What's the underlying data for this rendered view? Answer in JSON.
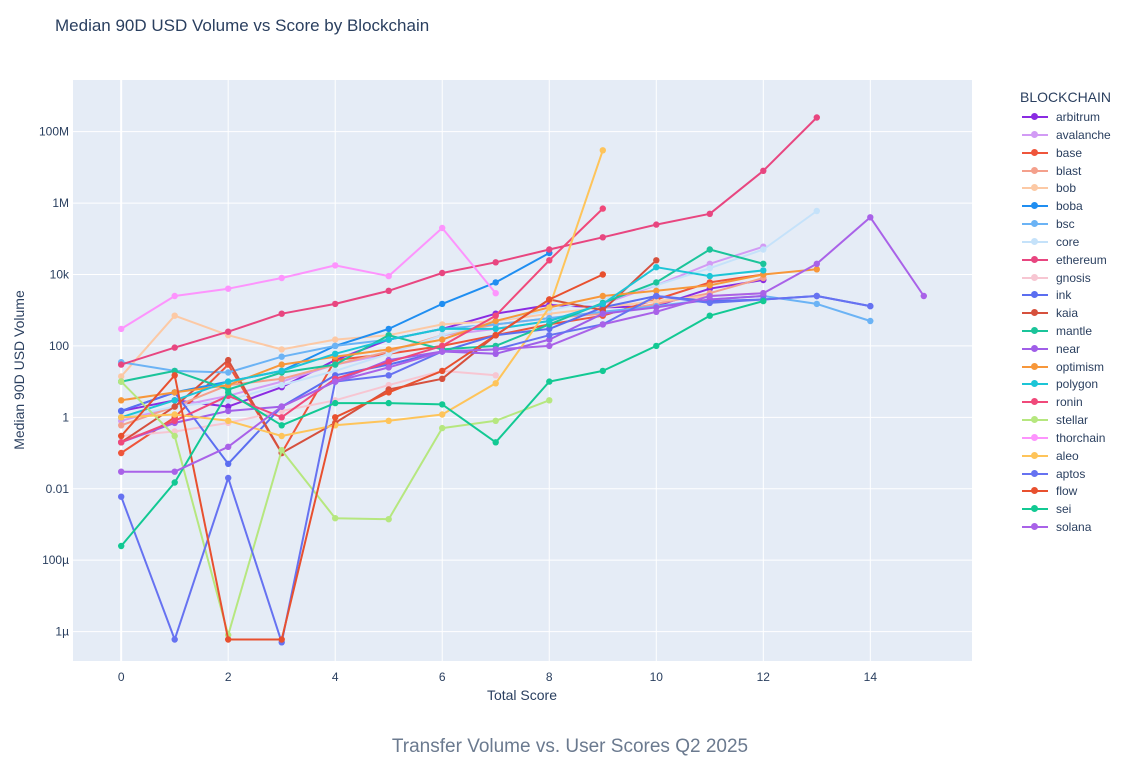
{
  "chart_data": {
    "type": "line",
    "title": "Median 90D USD Volume vs Score by Blockchain",
    "xlabel": "Total Score",
    "ylabel": "Median 90D USD Volume",
    "x_scale": "linear",
    "y_scale": "log",
    "xlim": [
      -0.9,
      15.9
    ],
    "ylim": [
      1.5e-07,
      2800000000
    ],
    "x_ticks": [
      0,
      2,
      4,
      6,
      8,
      10,
      12,
      14
    ],
    "y_ticks": [
      {
        "value": 1e-06,
        "label": "1µ"
      },
      {
        "value": 0.0001,
        "label": "100µ"
      },
      {
        "value": 0.01,
        "label": "0.01"
      },
      {
        "value": 1,
        "label": "1"
      },
      {
        "value": 100,
        "label": "100"
      },
      {
        "value": 10000,
        "label": "10k"
      },
      {
        "value": 1000000,
        "label": "1M"
      },
      {
        "value": 100000000,
        "label": "100M"
      }
    ],
    "legend_title": "BLOCKCHAIN",
    "legend_position": "right",
    "grid": true,
    "colors": {
      "plot_bg": "#e5ecf6",
      "grid": "#ffffff",
      "text": "#2a3f5f"
    },
    "series": [
      {
        "name": "arbitrum",
        "color": "#8a2be2",
        "x": [
          0,
          1,
          2,
          3,
          4,
          5,
          6,
          7,
          8,
          9,
          10,
          11,
          12
        ],
        "y": [
          1.5,
          3,
          2,
          7,
          40,
          150,
          300,
          800,
          1400,
          1200,
          1300,
          4000,
          7000
        ]
      },
      {
        "name": "avalanche",
        "color": "#d29bf5",
        "x": [
          0,
          1,
          2,
          3,
          4,
          5,
          6,
          7,
          8,
          9,
          10,
          11,
          12
        ],
        "y": [
          0.8,
          2,
          4,
          10,
          30,
          60,
          200,
          300,
          500,
          1500,
          5000,
          20000,
          60000
        ]
      },
      {
        "name": "base",
        "color": "#ef553b",
        "x": [
          0,
          1,
          2,
          3,
          4,
          5,
          6,
          7,
          8,
          9,
          10,
          11,
          12
        ],
        "y": [
          0.1,
          1,
          30,
          0.1,
          40,
          60,
          100,
          200,
          400,
          700,
          2000,
          6000,
          10000
        ]
      },
      {
        "name": "blast",
        "color": "#f4a08c",
        "x": [
          0,
          1,
          2,
          3,
          4,
          5,
          6,
          7,
          8,
          9,
          10,
          11,
          12
        ],
        "y": [
          0.6,
          2,
          8,
          12,
          30,
          70,
          200,
          400,
          600,
          800,
          1500,
          3000,
          8000
        ]
      },
      {
        "name": "bob",
        "color": "#fcc9a5",
        "x": [
          0,
          1,
          2,
          3,
          4,
          5,
          6,
          7,
          8,
          9,
          10,
          11,
          12
        ],
        "y": [
          14,
          700,
          200,
          80,
          150,
          200,
          400,
          500,
          800,
          1200,
          1800,
          2500,
          3000
        ]
      },
      {
        "name": "boba",
        "color": "#1f8ef1",
        "x": [
          0,
          1,
          2,
          3,
          4,
          5,
          6,
          7,
          8
        ],
        "y": [
          1.5,
          5,
          10,
          20,
          100,
          300,
          1500,
          6000,
          40000
        ]
      },
      {
        "name": "bsc",
        "color": "#6bb3f5",
        "x": [
          0,
          1,
          2,
          3,
          4,
          5,
          6,
          7,
          8,
          9,
          10,
          11,
          12,
          13,
          14
        ],
        "y": [
          35,
          20,
          18,
          50,
          100,
          150,
          300,
          400,
          600,
          900,
          1300,
          2000,
          2500,
          1500,
          500
        ]
      },
      {
        "name": "core",
        "color": "#c5e2fa",
        "x": [
          0,
          1,
          2,
          3,
          4,
          5,
          6,
          7,
          8,
          9,
          10,
          11,
          12,
          13
        ],
        "y": [
          1,
          2,
          3,
          8,
          20,
          60,
          200,
          500,
          1000,
          2000,
          5000,
          15000,
          50000,
          600000
        ]
      },
      {
        "name": "ethereum",
        "color": "#e84680",
        "x": [
          0,
          1,
          2,
          3,
          4,
          5,
          6,
          7,
          8,
          9,
          10,
          11,
          12,
          13
        ],
        "y": [
          30,
          90,
          250,
          800,
          1500,
          3500,
          11000,
          22000,
          50000,
          110000,
          250000,
          500000,
          8000000,
          250000000
        ]
      },
      {
        "name": "gnosis",
        "color": "#f7c6d2",
        "x": [
          0,
          1,
          2,
          3,
          4,
          5,
          6,
          7
        ],
        "y": [
          0.3,
          0.4,
          0.7,
          1.5,
          3,
          8,
          20,
          15
        ]
      },
      {
        "name": "ink",
        "color": "#5b6ef0",
        "x": [
          0,
          1,
          2,
          3,
          4,
          5,
          6,
          7,
          8,
          9,
          10,
          11,
          12,
          13,
          14
        ],
        "y": [
          1.5,
          5,
          0.05,
          2,
          15,
          30,
          70,
          200,
          300,
          1200,
          2500,
          1800,
          2000,
          2500,
          1300
        ]
      },
      {
        "name": "kaia",
        "color": "#d6503d",
        "x": [
          0,
          1,
          2,
          3,
          4,
          5,
          6,
          7,
          8,
          9,
          10
        ],
        "y": [
          0.2,
          2,
          40,
          0.1,
          0.7,
          6,
          12,
          200,
          2000,
          1000,
          25000
        ]
      },
      {
        "name": "mantle",
        "color": "#1bc49a",
        "x": [
          0,
          1,
          2,
          3,
          4,
          5,
          6,
          7,
          8,
          9,
          10,
          11,
          12
        ],
        "y": [
          10,
          20,
          6,
          18,
          30,
          200,
          80,
          100,
          400,
          1600,
          6000,
          50000,
          20000
        ]
      },
      {
        "name": "near",
        "color": "#a05ee8",
        "x": [
          0,
          1,
          2,
          3,
          4,
          5,
          6,
          7,
          8,
          9,
          10,
          11,
          12
        ],
        "y": [
          0.2,
          0.7,
          1.5,
          2,
          10,
          40,
          70,
          60,
          150,
          800,
          1200,
          2000,
          2500
        ]
      },
      {
        "name": "optimism",
        "color": "#f7973a",
        "x": [
          0,
          1,
          2,
          3,
          4,
          5,
          6,
          7,
          8,
          9,
          10,
          11,
          12,
          13
        ],
        "y": [
          3,
          5,
          8,
          30,
          50,
          80,
          150,
          500,
          1200,
          2500,
          3500,
          5000,
          10000,
          14000
        ]
      },
      {
        "name": "polygon",
        "color": "#1cc5d6",
        "x": [
          0,
          1,
          2,
          3,
          4,
          5,
          6,
          7,
          8,
          9,
          10,
          11,
          12
        ],
        "y": [
          1,
          3,
          10,
          20,
          60,
          150,
          300,
          300,
          500,
          1500,
          16000,
          9000,
          13000
        ]
      },
      {
        "name": "ronin",
        "color": "#f0497a",
        "x": [
          0,
          1,
          2,
          3,
          4,
          5,
          6,
          7,
          8,
          9
        ],
        "y": [
          0.2,
          0.8,
          4,
          1,
          12,
          35,
          100,
          700,
          25000,
          700000
        ]
      },
      {
        "name": "stellar",
        "color": "#b6e77f",
        "x": [
          0,
          1,
          2,
          3,
          4,
          5,
          6,
          7,
          8
        ],
        "y": [
          10,
          0.3,
          8e-07,
          0.12,
          0.0015,
          0.0014,
          0.5,
          0.8,
          3
        ]
      },
      {
        "name": "thorchain",
        "color": "#fd94fd",
        "x": [
          0,
          1,
          2,
          3,
          4,
          5,
          6,
          7
        ],
        "y": [
          300,
          2500,
          4000,
          8000,
          18000,
          9000,
          200000,
          3000
        ]
      },
      {
        "name": "aleo",
        "color": "#fec45a",
        "x": [
          0,
          1,
          2,
          3,
          4,
          5,
          6,
          7,
          8,
          9
        ],
        "y": [
          1,
          1.2,
          0.8,
          0.3,
          0.6,
          0.8,
          1.2,
          9,
          1200,
          30000000
        ]
      },
      {
        "name": "aptos",
        "color": "#6672f1",
        "x": [
          0,
          1,
          2,
          3,
          4,
          5,
          6,
          7,
          8,
          9,
          10,
          11,
          12,
          13,
          14
        ],
        "y": [
          0.006,
          6e-07,
          0.02,
          5e-07,
          10,
          15,
          70,
          80,
          200,
          400,
          2500,
          1600,
          2000,
          2500,
          1300
        ]
      },
      {
        "name": "flow",
        "color": "#e8502f",
        "x": [
          0,
          1,
          2,
          3,
          4,
          5,
          6,
          7,
          8,
          9
        ],
        "y": [
          0.3,
          15,
          6e-07,
          6e-07,
          1,
          5,
          20,
          200,
          2000,
          10000
        ]
      },
      {
        "name": "sei",
        "color": "#12c993",
        "x": [
          0,
          1,
          2,
          3,
          4,
          5,
          6,
          7,
          8,
          9,
          10,
          11,
          12
        ],
        "y": [
          0.00025,
          0.015,
          5,
          0.6,
          2.5,
          2.5,
          2.3,
          0.2,
          10,
          20,
          100,
          700,
          1800
        ]
      },
      {
        "name": "solana",
        "color": "#a962e8",
        "x": [
          0,
          1,
          2,
          3,
          4,
          5,
          6,
          7,
          8,
          9,
          10,
          11,
          12,
          13,
          14,
          15
        ],
        "y": [
          0.03,
          0.03,
          0.15,
          2,
          10,
          25,
          70,
          80,
          100,
          400,
          900,
          2500,
          3000,
          20000,
          400000,
          2500
        ]
      }
    ]
  },
  "caption": "Transfer Volume vs. User Scores Q2 2025"
}
